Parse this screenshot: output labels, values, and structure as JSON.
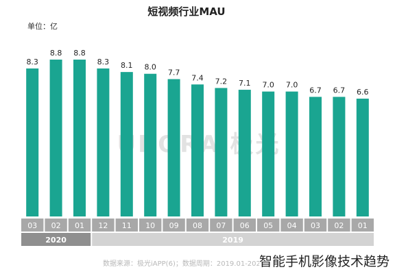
{
  "chart_data": {
    "type": "bar",
    "title": "短视频行业MAU",
    "unit": "单位：亿",
    "categories": [
      "03",
      "02",
      "01",
      "12",
      "11",
      "10",
      "09",
      "08",
      "07",
      "06",
      "05",
      "04",
      "03",
      "02",
      "01"
    ],
    "years": [
      {
        "label": "2020",
        "count": 3
      },
      {
        "label": "2019",
        "count": 12
      }
    ],
    "values": [
      8.3,
      8.8,
      8.8,
      8.3,
      8.1,
      8.0,
      7.7,
      7.4,
      7.2,
      7.1,
      7.0,
      7.0,
      6.7,
      6.7,
      6.6
    ],
    "value_labels": [
      "8.3",
      "8.8",
      "8.8",
      "8.3",
      "8.1",
      "8.0",
      "7.7",
      "7.4",
      "7.2",
      "7.1",
      "7.0",
      "7.0",
      "6.7",
      "6.7",
      "6.6"
    ],
    "xlabel": "",
    "ylabel": "",
    "grid": false,
    "bar_color": "#1aa591"
  },
  "watermark": "URORA 极光",
  "source_note": "数据来源：极光iAPP(6)；数据周期：2019.01-2020.03",
  "caption": "智能手机影像技术趋势"
}
